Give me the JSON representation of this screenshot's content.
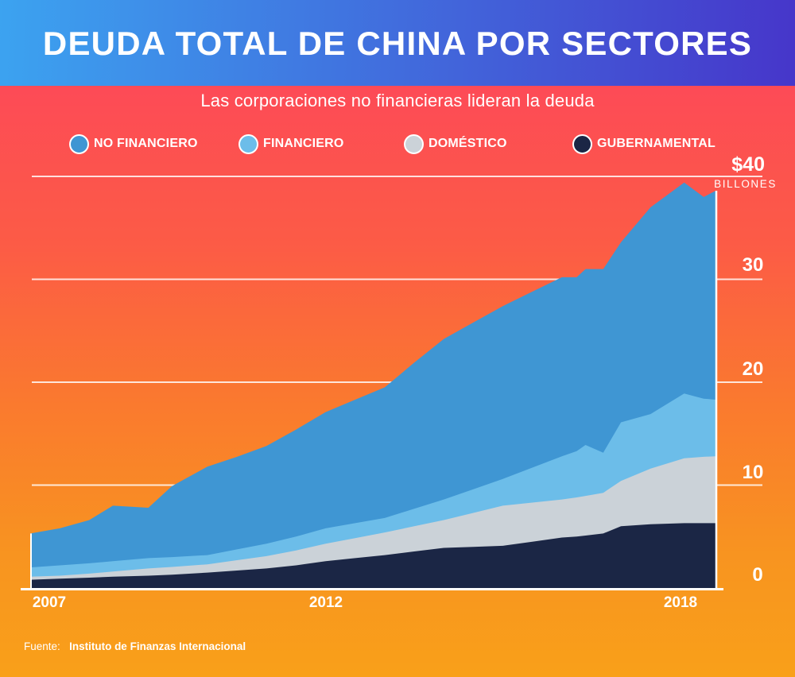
{
  "header": {
    "title": "DEUDA TOTAL DE CHINA POR SECTORES"
  },
  "subtitle": "Las corporaciones no financieras lideran la deuda",
  "legend": {
    "items": [
      {
        "label": "NO FINANCIERO",
        "color": "#3f96d3"
      },
      {
        "label": "FINANCIERO",
        "color": "#6cbde9"
      },
      {
        "label": "DOMÉSTICO",
        "color": "#cbd2d8"
      },
      {
        "label": "GUBERNAMENTAL",
        "color": "#1b2645"
      }
    ]
  },
  "y_axis": {
    "max_label": "$40",
    "unit_label": "BILLONES",
    "ticks": [
      "30",
      "20",
      "10",
      "0"
    ]
  },
  "x_axis": {
    "labels": [
      "2007",
      "2012",
      "2018"
    ]
  },
  "footer": {
    "prefix": "Fuente:",
    "source": "Instituto de Finanzas Internacional"
  },
  "colors": {
    "header_gradient_left": "#3ca3f0",
    "header_gradient_right": "#4636ca",
    "background_top": "#fd4a57",
    "background_bottom": "#f9a019",
    "gridline": "rgba(255,255,255,0.82)",
    "axis": "#ffffff"
  },
  "chart_data": {
    "type": "area",
    "stacked": true,
    "title": "DEUDA TOTAL DE CHINA POR SECTORES",
    "subtitle": "Las corporaciones no financieras lideran la deuda",
    "unit": "billones de dólares ($T)",
    "ylim": [
      0,
      40
    ],
    "x_range": [
      2007,
      2018.6
    ],
    "gridline_values": [
      40,
      30,
      20,
      10
    ],
    "x_years": [
      2007,
      2007.5,
      2008,
      2008.4,
      2009,
      2009.4,
      2010,
      2010.5,
      2011,
      2011.5,
      2012,
      2012.5,
      2013,
      2013.5,
      2014,
      2014.5,
      2015,
      2015.5,
      2016,
      2016.25,
      2016.4,
      2016.7,
      2017,
      2017.5,
      2018.07,
      2018.4,
      2018.6
    ],
    "series": [
      {
        "name": "GUBERNAMENTAL",
        "color": "#1b2645",
        "values": [
          0.8,
          0.9,
          1.0,
          1.1,
          1.2,
          1.3,
          1.5,
          1.7,
          1.9,
          2.2,
          2.6,
          2.9,
          3.2,
          3.55,
          3.9,
          4.0,
          4.1,
          4.5,
          4.9,
          5.0,
          5.1,
          5.3,
          6.0,
          6.2,
          6.3,
          6.3,
          6.3
        ]
      },
      {
        "name": "DOMÉSTICO",
        "color": "#cbd2d8",
        "values": [
          0.3,
          0.3,
          0.4,
          0.5,
          0.7,
          0.75,
          0.8,
          1.0,
          1.2,
          1.45,
          1.7,
          1.95,
          2.2,
          2.45,
          2.7,
          3.3,
          3.9,
          3.8,
          3.7,
          3.8,
          3.85,
          3.95,
          4.4,
          5.4,
          6.3,
          6.45,
          6.5
        ]
      },
      {
        "name": "FINANCIERO",
        "color": "#6cbde9",
        "values": [
          0.9,
          1.0,
          1.0,
          1.0,
          1.0,
          0.95,
          0.9,
          1.05,
          1.2,
          1.35,
          1.5,
          1.45,
          1.4,
          1.7,
          2.0,
          2.3,
          2.6,
          3.4,
          4.2,
          4.5,
          4.95,
          3.9,
          5.7,
          5.3,
          6.3,
          5.65,
          5.5
        ]
      },
      {
        "name": "NO FINANCIERO",
        "color": "#3f96d3",
        "values": [
          3.3,
          3.6,
          4.2,
          5.4,
          4.9,
          6.9,
          8.6,
          9.0,
          9.5,
          10.4,
          11.3,
          12.0,
          12.7,
          14.2,
          15.6,
          16.2,
          16.8,
          17.1,
          17.4,
          16.9,
          17.1,
          17.85,
          17.5,
          20.1,
          20.5,
          19.6,
          20.3
        ]
      }
    ],
    "legend_position": "top"
  }
}
